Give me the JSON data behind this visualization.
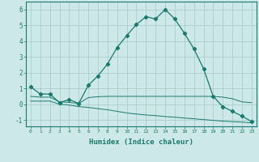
{
  "xlabel": "Humidex (Indice chaleur)",
  "ylabel": "",
  "xlim": [
    -0.5,
    23.5
  ],
  "ylim": [
    -1.4,
    6.5
  ],
  "xticks": [
    0,
    1,
    2,
    3,
    4,
    5,
    6,
    7,
    8,
    9,
    10,
    11,
    12,
    13,
    14,
    15,
    16,
    17,
    18,
    19,
    20,
    21,
    22,
    23
  ],
  "yticks": [
    -1,
    0,
    1,
    2,
    3,
    4,
    5,
    6
  ],
  "bg_color": "#cde8e8",
  "line_color": "#1a7a6e",
  "grid_color": "#a8c8c8",
  "curve1_x": [
    0,
    1,
    2,
    3,
    4,
    5,
    6,
    7,
    8,
    9,
    10,
    11,
    12,
    13,
    14,
    15,
    16,
    17,
    18,
    19,
    20,
    21,
    22,
    23
  ],
  "curve1_y": [
    1.1,
    0.65,
    0.65,
    0.1,
    0.3,
    0.05,
    1.2,
    1.8,
    2.55,
    3.6,
    4.35,
    5.05,
    5.55,
    5.4,
    6.0,
    5.4,
    4.5,
    3.5,
    2.25,
    0.5,
    -0.15,
    -0.45,
    -0.75,
    -1.1
  ],
  "curve2_x": [
    0,
    1,
    2,
    3,
    4,
    5,
    6,
    7,
    8,
    9,
    10,
    11,
    12,
    13,
    14,
    15,
    16,
    17,
    18,
    19,
    20,
    21,
    22,
    23
  ],
  "curve2_y": [
    0.5,
    0.45,
    0.45,
    0.15,
    0.12,
    0.05,
    0.42,
    0.48,
    0.5,
    0.5,
    0.5,
    0.5,
    0.5,
    0.5,
    0.5,
    0.5,
    0.5,
    0.5,
    0.5,
    0.5,
    0.45,
    0.35,
    0.15,
    0.1
  ],
  "curve3_x": [
    0,
    1,
    2,
    3,
    4,
    5,
    6,
    7,
    8,
    9,
    10,
    11,
    12,
    13,
    14,
    15,
    16,
    17,
    18,
    19,
    20,
    21,
    22,
    23
  ],
  "curve3_y": [
    0.2,
    0.2,
    0.2,
    0.0,
    -0.05,
    -0.15,
    -0.2,
    -0.28,
    -0.35,
    -0.45,
    -0.55,
    -0.62,
    -0.68,
    -0.72,
    -0.78,
    -0.82,
    -0.87,
    -0.92,
    -0.97,
    -1.02,
    -1.07,
    -1.1,
    -1.13,
    -1.18
  ]
}
